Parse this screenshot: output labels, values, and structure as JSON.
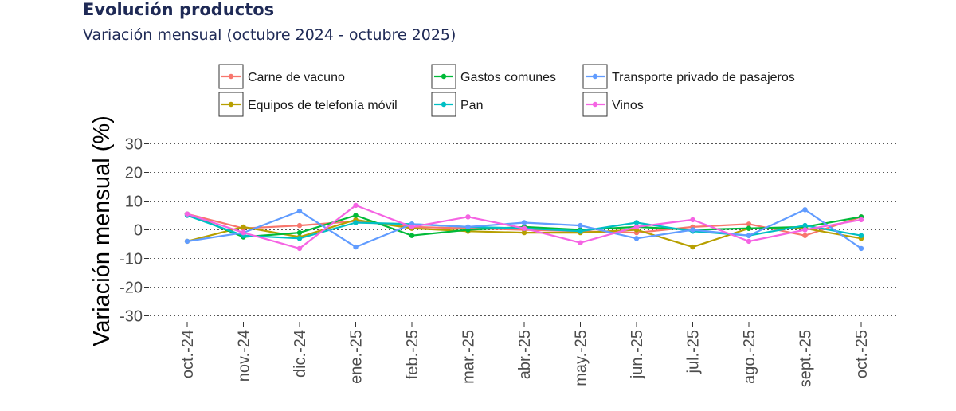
{
  "header": {
    "title": "Evolución productos",
    "subtitle": "Variación mensual (octubre 2024 - octubre 2025)"
  },
  "chart_data": {
    "type": "line",
    "title": "Evolución productos",
    "subtitle": "Variación mensual (octubre 2024 - octubre 2025)",
    "xlabel": "",
    "ylabel": "Variación mensual (%)",
    "ylim": [
      -30,
      30
    ],
    "yticks": [
      30,
      20,
      10,
      0,
      -10,
      -20,
      -30
    ],
    "ytick_labels": [
      "30",
      "20",
      "10",
      "0",
      "-10",
      "-20",
      "-30"
    ],
    "grid": "horizontal dotted",
    "legend_position": "top",
    "categories": [
      "oct.-24",
      "nov.-24",
      "dic.-24",
      "ene.-25",
      "feb.-25",
      "mar.-25",
      "abr.-25",
      "may.-25",
      "jun.-25",
      "jul.-25",
      "ago.-25",
      "sept.-25",
      "oct.-25"
    ],
    "series": [
      {
        "name": "Carne de vacuno",
        "color": "#F8766D",
        "values": [
          5.5,
          0.5,
          1.5,
          3.0,
          1.0,
          0.5,
          0.0,
          -0.5,
          -1.0,
          1.0,
          2.0,
          -2.0,
          4.5
        ]
      },
      {
        "name": "Equipos de telefonía móvil",
        "color": "#B79F00",
        "values": [
          -4.0,
          1.0,
          -2.5,
          3.5,
          0.5,
          -0.5,
          -1.0,
          -1.0,
          0.0,
          -6.0,
          0.5,
          0.5,
          -3.0
        ]
      },
      {
        "name": "Gastos comunes",
        "color": "#00BA38",
        "values": [
          5.5,
          -2.5,
          -1.0,
          5.0,
          -2.0,
          0.0,
          1.0,
          0.0,
          1.0,
          0.0,
          0.5,
          1.0,
          4.5
        ]
      },
      {
        "name": "Pan",
        "color": "#00BFC4",
        "values": [
          5.0,
          -2.0,
          -3.0,
          2.5,
          2.0,
          1.0,
          0.5,
          -0.5,
          2.5,
          -0.5,
          -2.0,
          1.5,
          -2.0
        ]
      },
      {
        "name": "Transporte privado de pasajeros",
        "color": "#619CFF",
        "values": [
          -4.0,
          -1.0,
          6.5,
          -6.0,
          2.0,
          1.0,
          2.5,
          1.5,
          -3.0,
          0.0,
          -2.0,
          7.0,
          -6.5
        ]
      },
      {
        "name": "Vinos",
        "color": "#F564E3",
        "values": [
          5.5,
          -1.0,
          -6.5,
          8.5,
          1.0,
          4.5,
          0.5,
          -4.5,
          1.0,
          3.5,
          -4.0,
          0.0,
          3.5
        ]
      }
    ]
  }
}
